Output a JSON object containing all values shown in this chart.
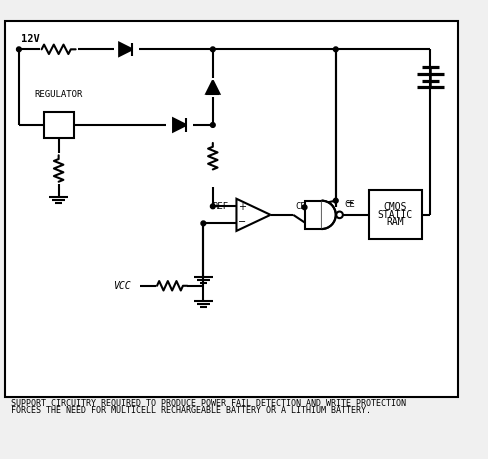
{
  "bg_color": "#f0f0f0",
  "border_color": "#000000",
  "line_color": "#000000",
  "line_width": 1.5,
  "caption_line1": "SUPPORT CIRCUITRY REQUIRED TO PRODUCE POWER FAIL DETECTION AND WRITE PROTECTION",
  "caption_line2": "FORCES THE NEED FOR MULTICELL RECHARGEABLE BATTERY OR A LITHIUM BATTERY.",
  "caption_fontsize": 6.0,
  "label_12v": "12V",
  "label_regulator": "REGULATOR",
  "label_ref": "REF",
  "label_ce": "CE",
  "label_ce_bar": "CE",
  "label_vcc": "VCC",
  "label_cmos_line1": "CMOS",
  "label_cmos_line2": "STATIC",
  "label_cmos_line3": "RAM"
}
